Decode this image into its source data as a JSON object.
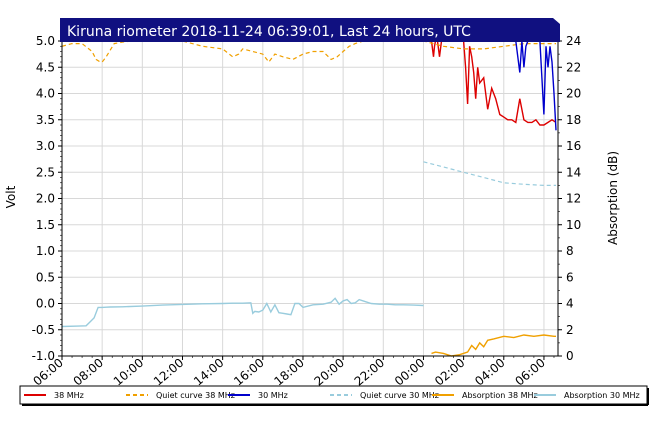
{
  "chart_data": {
    "type": "line",
    "title": "Kiruna riometer 2018-11-24 06:39:01, Last 24 hours, UTC",
    "ylabel": "Volt",
    "y2label": "Absorption (dB)",
    "xlim": [
      6.0,
      30.7
    ],
    "ylim": [
      -1.0,
      5.0
    ],
    "y2lim": [
      0,
      24
    ],
    "x_ticks": [
      "06:00",
      "08:00",
      "10:00",
      "12:00",
      "14:00",
      "16:00",
      "18:00",
      "20:00",
      "22:00",
      "00:00",
      "02:00",
      "04:00",
      "06:00"
    ],
    "y_ticks": [
      "-1.0",
      "-0.5",
      "0.0",
      "0.5",
      "1.0",
      "1.5",
      "2.0",
      "2.5",
      "3.0",
      "3.5",
      "4.0",
      "4.5",
      "5.0"
    ],
    "y2_ticks": [
      "0",
      "2",
      "4",
      "6",
      "8",
      "10",
      "12",
      "14",
      "16",
      "18",
      "20",
      "22",
      "24"
    ],
    "grid": true,
    "legend_position": "bottom",
    "series": [
      {
        "name": "38 MHz",
        "color": "#dd0000",
        "style": "solid",
        "axis": "left",
        "x": [
          24.4,
          24.5,
          24.55,
          24.6,
          24.7,
          24.8,
          24.9,
          25.0,
          25.2,
          25.4,
          25.6,
          26.0,
          26.1,
          26.2,
          26.3,
          26.4,
          26.5,
          26.6,
          26.7,
          26.8,
          27.0,
          27.2,
          27.4,
          27.6,
          27.8,
          28.0,
          28.2,
          28.4,
          28.6,
          28.8,
          29.0,
          29.2,
          29.4,
          29.6,
          29.8,
          30.0,
          30.2,
          30.4,
          30.6
        ],
        "y": [
          5.0,
          4.7,
          4.9,
          5.0,
          5.0,
          4.7,
          5.0,
          5.0,
          5.0,
          5.0,
          5.0,
          5.0,
          4.5,
          3.8,
          4.9,
          4.7,
          4.4,
          3.9,
          4.5,
          4.2,
          4.3,
          3.7,
          4.1,
          3.9,
          3.6,
          3.55,
          3.5,
          3.5,
          3.45,
          3.9,
          3.5,
          3.45,
          3.45,
          3.5,
          3.4,
          3.4,
          3.45,
          3.5,
          3.45
        ]
      },
      {
        "name": "Quiet curve 38 MHz",
        "color": "#f0a000",
        "style": "dashed",
        "axis": "left",
        "x": [
          6.0,
          6.5,
          7.0,
          7.5,
          7.7,
          7.9,
          8.0,
          8.2,
          8.6,
          9.0,
          9.5,
          10.0,
          11.0,
          12.0,
          13.0,
          14.0,
          14.5,
          14.8,
          15.0,
          15.5,
          16.0,
          16.3,
          16.6,
          17.0,
          17.5,
          18.0,
          18.5,
          19.0,
          19.4,
          19.7,
          20.0,
          20.3,
          20.6,
          21.0,
          22.0,
          23.0,
          24.0,
          25.0,
          26.0,
          27.0,
          28.0,
          29.0,
          30.0,
          30.6
        ],
        "y": [
          4.9,
          4.95,
          4.95,
          4.8,
          4.65,
          4.6,
          4.6,
          4.7,
          4.95,
          4.98,
          5.0,
          5.0,
          5.0,
          5.0,
          4.9,
          4.85,
          4.7,
          4.75,
          4.85,
          4.8,
          4.75,
          4.6,
          4.75,
          4.7,
          4.65,
          4.75,
          4.8,
          4.8,
          4.65,
          4.7,
          4.8,
          4.9,
          4.95,
          5.0,
          5.0,
          5.0,
          5.0,
          4.9,
          4.85,
          4.85,
          4.9,
          4.95,
          4.95,
          4.95
        ]
      },
      {
        "name": "30 MHz",
        "color": "#0000cc",
        "style": "solid",
        "axis": "left",
        "x": [
          28.6,
          28.7,
          28.8,
          28.9,
          29.0,
          29.1,
          29.2,
          29.4,
          29.6,
          29.8,
          29.9,
          30.0,
          30.1,
          30.2,
          30.3,
          30.4,
          30.5,
          30.6
        ],
        "y": [
          5.0,
          4.7,
          4.4,
          5.0,
          4.5,
          4.9,
          5.0,
          5.0,
          5.0,
          5.0,
          4.3,
          3.6,
          4.9,
          4.5,
          4.9,
          4.6,
          4.0,
          3.3
        ]
      },
      {
        "name": "Quiet curve 30 MHz",
        "color": "#99ccdd",
        "style": "dashed",
        "axis": "left",
        "x": [
          24.0,
          25.0,
          26.0,
          27.0,
          28.0,
          29.0,
          30.0,
          30.6
        ],
        "y": [
          2.7,
          2.6,
          2.5,
          2.4,
          2.3,
          2.27,
          2.25,
          2.25
        ]
      },
      {
        "name": "Absorption 38 MHz",
        "color": "#f0a000",
        "style": "solid",
        "axis": "right",
        "x": [
          24.4,
          24.6,
          25.0,
          25.4,
          25.8,
          26.2,
          26.4,
          26.6,
          26.8,
          27.0,
          27.2,
          27.5,
          28.0,
          28.5,
          29.0,
          29.5,
          30.0,
          30.5,
          30.6
        ],
        "y": [
          0.2,
          0.3,
          0.2,
          0.0,
          0.1,
          0.3,
          0.8,
          0.5,
          1.0,
          0.7,
          1.2,
          1.3,
          1.5,
          1.4,
          1.6,
          1.5,
          1.6,
          1.5,
          1.5
        ]
      },
      {
        "name": "Absorption 30 MHz",
        "color": "#99ccdd",
        "style": "solid",
        "axis": "right",
        "x": [
          6.0,
          6.8,
          7.2,
          7.4,
          7.6,
          7.8,
          8.0,
          8.2,
          8.4,
          9.0,
          10.0,
          11.0,
          12.0,
          13.0,
          14.0,
          14.5,
          15.0,
          15.4,
          15.5,
          15.6,
          15.8,
          16.0,
          16.2,
          16.4,
          16.6,
          16.8,
          17.0,
          17.2,
          17.4,
          17.6,
          17.8,
          18.0,
          18.5,
          19.0,
          19.4,
          19.6,
          19.8,
          20.0,
          20.2,
          20.4,
          20.6,
          20.8,
          21.0,
          21.4,
          21.8,
          22.2,
          22.6,
          23.0,
          23.5,
          24.0
        ],
        "y": [
          2.25,
          2.28,
          2.3,
          2.6,
          2.9,
          3.7,
          3.7,
          3.72,
          3.73,
          3.75,
          3.8,
          3.88,
          3.93,
          3.98,
          4.0,
          4.02,
          4.02,
          4.05,
          3.25,
          3.4,
          3.35,
          3.5,
          4.0,
          3.35,
          3.9,
          3.3,
          3.25,
          3.2,
          3.15,
          4.0,
          4.0,
          3.7,
          3.9,
          3.95,
          4.1,
          4.4,
          3.95,
          4.2,
          4.3,
          4.0,
          4.05,
          4.3,
          4.2,
          4.0,
          3.95,
          3.95,
          3.9,
          3.9,
          3.88,
          3.85
        ]
      }
    ]
  },
  "legend": {
    "items": [
      {
        "label": "38 MHz",
        "color": "#dd0000",
        "dash": false
      },
      {
        "label": "Quiet curve 38 MHz",
        "color": "#f0a000",
        "dash": true
      },
      {
        "label": "30 MHz",
        "color": "#0000cc",
        "dash": false
      },
      {
        "label": "Quiet curve 30 MHz",
        "color": "#99ccdd",
        "dash": true
      },
      {
        "label": "Absorption 38 MHz",
        "color": "#f0a000",
        "dash": false
      },
      {
        "label": "Absorption 30 MHz",
        "color": "#99ccdd",
        "dash": false
      }
    ]
  },
  "colors": {
    "title_bg": "#101080",
    "grid": "#d8d8d8",
    "frame": "#000000"
  }
}
